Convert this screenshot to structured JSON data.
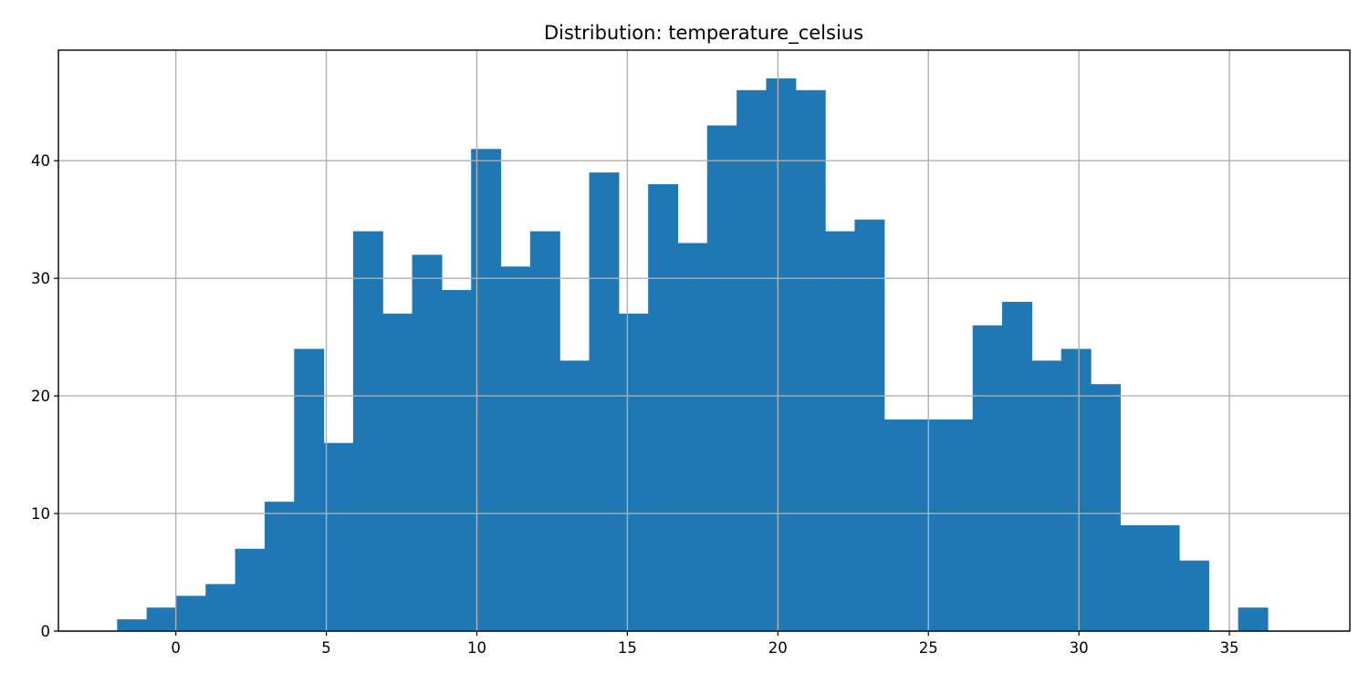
{
  "chart_data": {
    "type": "bar",
    "subtype": "histogram",
    "title": "Distribution: temperature_celsius",
    "xlabel": "",
    "ylabel": "",
    "xlim": [
      -3.9,
      39.0
    ],
    "ylim": [
      0,
      49.4
    ],
    "grid": true,
    "legend": "none",
    "bar_color": "#1f77b4",
    "x_ticks": [
      0,
      5,
      10,
      15,
      20,
      25,
      30,
      35
    ],
    "y_ticks": [
      0,
      10,
      20,
      30,
      40
    ],
    "bin_start": -1.95,
    "bin_width": 0.98,
    "counts": [
      1,
      2,
      3,
      4,
      7,
      11,
      24,
      16,
      34,
      27,
      32,
      29,
      41,
      31,
      34,
      23,
      39,
      27,
      38,
      33,
      43,
      46,
      47,
      46,
      34,
      35,
      18,
      18,
      18,
      26,
      28,
      23,
      24,
      21,
      9,
      9,
      6,
      0,
      2
    ]
  }
}
